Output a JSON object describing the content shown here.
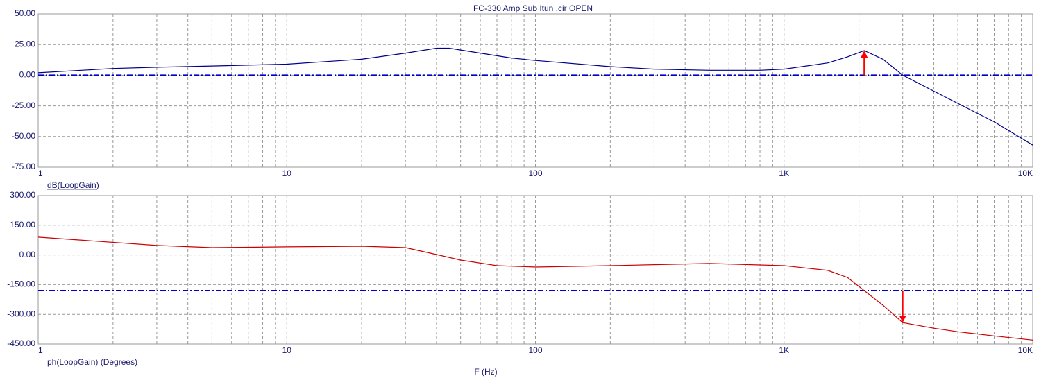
{
  "chart_data": [
    {
      "type": "line",
      "title": "FC-330 Amp Sub Itun .cir OPEN",
      "log_x": true,
      "grid": true,
      "x": [
        1,
        2,
        3,
        5,
        10,
        20,
        30,
        40,
        45,
        60,
        80,
        100,
        200,
        300,
        500,
        800,
        1000,
        1500,
        1800,
        2100,
        2500,
        3000,
        4000,
        5000,
        7000,
        10000
      ],
      "series": [
        {
          "name": "dB(LoopGain)",
          "color": "#00008b",
          "values": [
            2,
            5.5,
            6.5,
            7.5,
            9,
            13,
            18,
            22,
            22,
            18,
            14,
            12,
            7,
            5,
            4,
            4,
            5,
            10,
            15,
            20,
            13,
            0,
            -13,
            -23,
            -38,
            -57
          ]
        }
      ],
      "xlim": [
        1,
        10000
      ],
      "xticks": [
        1,
        10,
        100,
        {
          "value": 1000,
          "label": "1K"
        },
        {
          "value": 10000,
          "label": "10K"
        }
      ],
      "ylim": [
        -75,
        50
      ],
      "yticks": [
        {
          "value": 50,
          "label": "50.00"
        },
        {
          "value": 25,
          "label": "25.00"
        },
        {
          "value": 0,
          "label": "0.00"
        },
        {
          "value": -25,
          "label": "-25.00"
        },
        {
          "value": -50,
          "label": "-50.00"
        },
        {
          "value": -75,
          "label": "-75.00"
        }
      ],
      "hline": {
        "value": 0,
        "color": "#0000cc"
      },
      "arrow": {
        "x": 2100,
        "from": 0,
        "to": 20,
        "color": "#ff0000"
      }
    },
    {
      "type": "line",
      "xlabel": "F (Hz)",
      "log_x": true,
      "grid": true,
      "x": [
        1,
        3,
        5,
        10,
        20,
        30,
        40,
        50,
        70,
        100,
        200,
        500,
        1000,
        1500,
        1800,
        2000,
        2500,
        3000,
        4000,
        5000,
        7000,
        10000
      ],
      "series": [
        {
          "name": "ph(LoopGain) (Degrees)",
          "color": "#cc0000",
          "values": [
            90,
            48,
            37,
            41,
            44,
            37,
            2,
            -26,
            -54,
            -61,
            -54,
            -43,
            -54,
            -78,
            -114,
            -159,
            -254,
            -342,
            -370,
            -388,
            -409,
            -430
          ]
        }
      ],
      "xlim": [
        1,
        10000
      ],
      "xticks": [
        1,
        10,
        100,
        {
          "value": 1000,
          "label": "1K"
        },
        {
          "value": 10000,
          "label": "10K"
        }
      ],
      "ylim": [
        -450,
        300
      ],
      "yticks": [
        {
          "value": 300,
          "label": "300.00"
        },
        {
          "value": 150,
          "label": "150.00"
        },
        {
          "value": 0,
          "label": "0.00"
        },
        {
          "value": -150,
          "label": "-150.00"
        },
        {
          "value": -300,
          "label": "-300.00"
        },
        {
          "value": -450,
          "label": "-450.00"
        }
      ],
      "hline": {
        "value": -180,
        "color": "#0000cc"
      },
      "arrow": {
        "x": 3000,
        "from": -180,
        "to": -342,
        "color": "#ff0000"
      }
    }
  ]
}
